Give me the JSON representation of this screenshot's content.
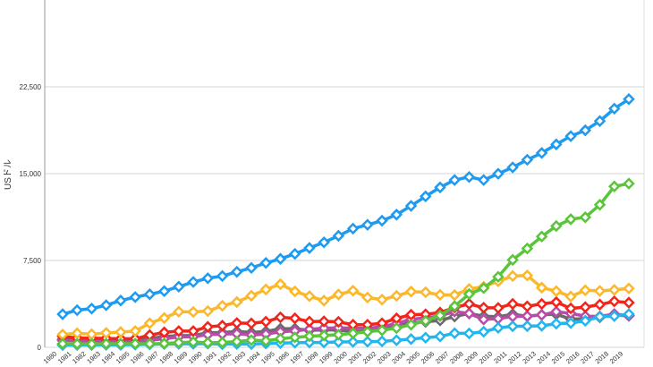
{
  "chart_data": {
    "type": "line",
    "y_label": "USドル",
    "categories": [
      "1980",
      "1981",
      "1982",
      "1983",
      "1984",
      "1985",
      "1986",
      "1987",
      "1988",
      "1989",
      "1990",
      "1991",
      "1992",
      "1993",
      "1994",
      "1995",
      "1996",
      "1997",
      "1998",
      "1999",
      "2000",
      "2001",
      "2002",
      "2003",
      "2004",
      "2005",
      "2006",
      "2007",
      "2008",
      "2009",
      "2010",
      "2011",
      "2012",
      "2013",
      "2014",
      "2015",
      "2016",
      "2017",
      "2018",
      "2019"
    ],
    "ylim": [
      0,
      30000
    ],
    "yticks": [
      0,
      {
        "value": 7500,
        "label": "7,500"
      },
      {
        "value": 15000,
        "label": "15,000"
      },
      {
        "value": 22500,
        "label": "22,500"
      }
    ],
    "grid": true,
    "series": [
      {
        "color": "#6b6b6b",
        "values": [
          700,
          620,
          590,
          560,
          530,
          550,
          770,
          930,
          1010,
          1010,
          1270,
          1270,
          1370,
          1290,
          1370,
          1600,
          1610,
          1460,
          1510,
          1490,
          1360,
          1380,
          1500,
          1840,
          2120,
          2200,
          2320,
          2660,
          2920,
          2690,
          2640,
          2860,
          2680,
          2810,
          2850,
          2440,
          2470,
          2590,
          2790,
          2720
        ]
      },
      {
        "color": "#b84ca8",
        "values": [
          600,
          560,
          520,
          490,
          460,
          490,
          600,
          740,
          900,
          920,
          1090,
          1140,
          1180,
          1060,
          1140,
          1340,
          1410,
          1560,
          1650,
          1680,
          1660,
          1640,
          1780,
          2050,
          2420,
          2540,
          2710,
          3090,
          2920,
          2410,
          2480,
          2660,
          2700,
          2790,
          3070,
          2930,
          2690,
          2670,
          2870,
          2750
        ]
      },
      {
        "color": "#23b5ee",
        "values": [
          190,
          200,
          205,
          210,
          210,
          235,
          250,
          280,
          300,
          300,
          320,
          275,
          290,
          285,
          330,
          370,
          400,
          420,
          420,
          460,
          470,
          480,
          510,
          610,
          710,
          830,
          940,
          1220,
          1200,
          1340,
          1680,
          1820,
          1830,
          1860,
          2040,
          2100,
          2290,
          2650,
          2700,
          2870
        ]
      },
      {
        "color": "#f0251c",
        "values": [
          950,
          800,
          780,
          770,
          730,
          740,
          1050,
          1290,
          1400,
          1400,
          1770,
          1870,
          2100,
          2070,
          2210,
          2590,
          2500,
          2220,
          2240,
          2200,
          1950,
          1950,
          2080,
          2500,
          2810,
          2850,
          3000,
          3440,
          3750,
          3420,
          3400,
          3750,
          3540,
          3750,
          3900,
          3360,
          3470,
          3690,
          3970,
          3860
        ]
      },
      {
        "color": "#fbb82b",
        "values": [
          1105,
          1218,
          1134,
          1243,
          1318,
          1398,
          2078,
          2532,
          3072,
          3054,
          3133,
          3584,
          3909,
          4455,
          4999,
          5449,
          4834,
          4415,
          4033,
          4562,
          4888,
          4304,
          4115,
          4445,
          4815,
          4755,
          4530,
          4515,
          5038,
          5231,
          5700,
          6157,
          6203,
          5156,
          4850,
          4389,
          4927,
          4867,
          4955,
          5082
        ]
      },
      {
        "color": "#5ac53a",
        "values": [
          305,
          290,
          284,
          305,
          313,
          309,
          301,
          327,
          408,
          456,
          396,
          413,
          492,
          617,
          564,
          734,
          863,
          961,
          1029,
          1094,
          1211,
          1339,
          1471,
          1660,
          1955,
          2286,
          2752,
          3552,
          4598,
          5110,
          6087,
          7552,
          8532,
          9570,
          10476,
          11062,
          11233,
          12310,
          13895,
          14140
        ]
      },
      {
        "color": "#1e9bf0",
        "values": [
          2857,
          3207,
          3343,
          3634,
          4037,
          4339,
          4580,
          4855,
          5236,
          5642,
          5963,
          6158,
          6520,
          6859,
          7287,
          7640,
          8073,
          8578,
          9063,
          9631,
          10252,
          10582,
          10936,
          11458,
          12214,
          13037,
          13815,
          14452,
          14713,
          14449,
          14992,
          15543,
          16197,
          16785,
          17527,
          18238,
          18745,
          19543,
          20612,
          21433
        ]
      }
    ]
  }
}
